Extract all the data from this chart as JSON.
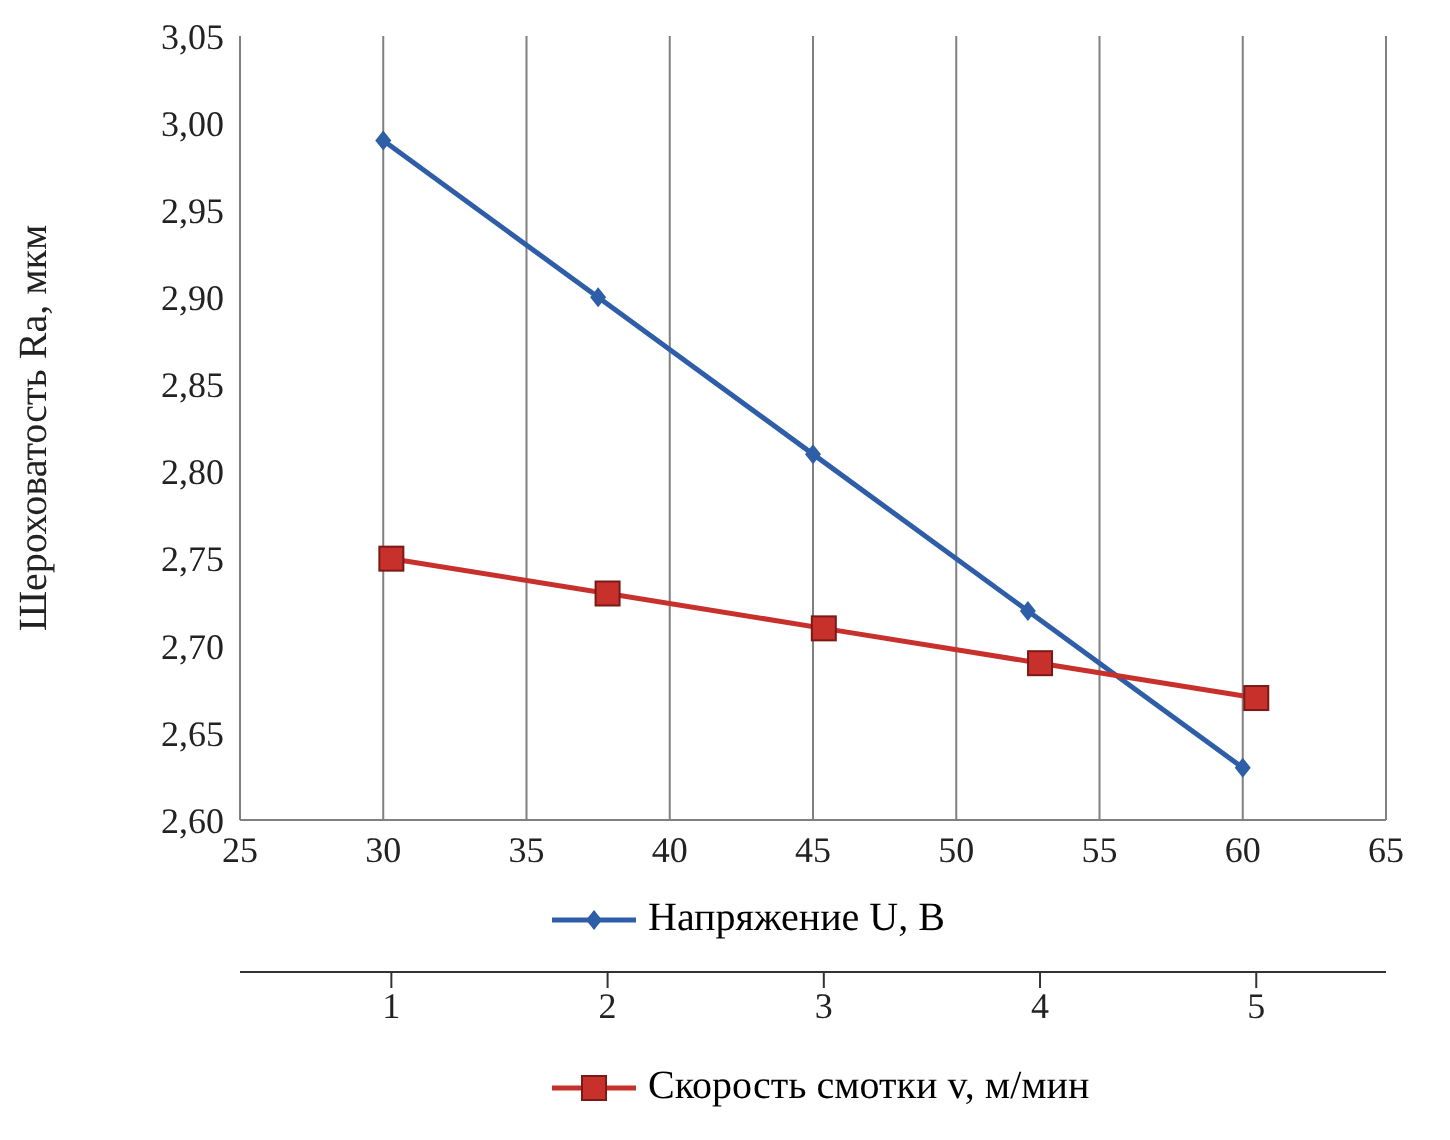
{
  "chart_data": {
    "type": "line",
    "ylabel": "Шероховатость Ra, мкм",
    "xlim": [
      25,
      65
    ],
    "xticks": [
      25,
      30,
      35,
      40,
      45,
      50,
      55,
      60,
      65
    ],
    "x2lim": [
      0.3,
      5.6
    ],
    "x2ticks": [
      1,
      2,
      3,
      4,
      5
    ],
    "ylim": [
      2.6,
      3.05
    ],
    "yticks": [
      {
        "value": 2.6,
        "label": "2,60"
      },
      {
        "value": 2.65,
        "label": "2,65"
      },
      {
        "value": 2.7,
        "label": "2,70"
      },
      {
        "value": 2.75,
        "label": "2,75"
      },
      {
        "value": 2.8,
        "label": "2,80"
      },
      {
        "value": 2.85,
        "label": "2,85"
      },
      {
        "value": 2.9,
        "label": "2,90"
      },
      {
        "value": 2.95,
        "label": "2,95"
      },
      {
        "value": 3.0,
        "label": "3,00"
      },
      {
        "value": 3.05,
        "label": "3,05"
      }
    ],
    "grid": true,
    "legend": "bottom",
    "line_style": "solid",
    "series": [
      {
        "name": "Напряжение U, В",
        "color": "#2f5ea8",
        "marker": "diamond",
        "x": [
          30,
          37.5,
          45,
          52.5,
          60
        ],
        "values": [
          2.99,
          2.9,
          2.81,
          2.72,
          2.63
        ]
      },
      {
        "name": "Скорость смотки v, м/мин",
        "color": "#c8302c",
        "marker": "square",
        "axis": "x2",
        "x": [
          1,
          2,
          3,
          4,
          5
        ],
        "values": [
          2.75,
          2.73,
          2.71,
          2.69,
          2.67
        ]
      }
    ]
  }
}
